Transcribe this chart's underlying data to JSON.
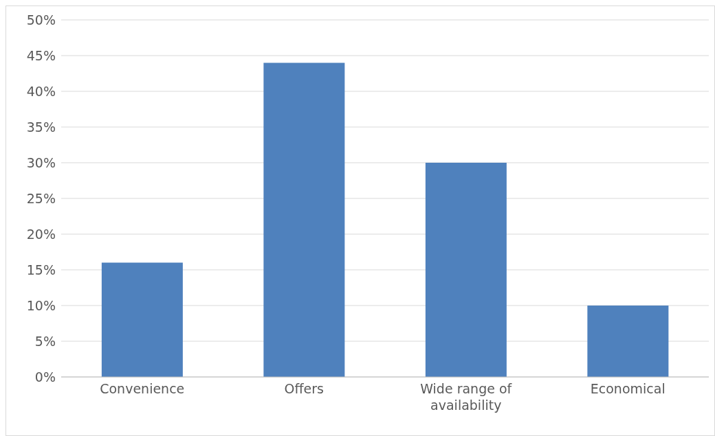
{
  "chart_data": {
    "type": "bar",
    "categories": [
      "Convenience",
      "Offers",
      "Wide range of availability",
      "Economical"
    ],
    "values": [
      16,
      44,
      30,
      10
    ],
    "color": "#4f81bd",
    "ylim": [
      0,
      50
    ],
    "yticks": [
      {
        "value": 0,
        "label": "0%"
      },
      {
        "value": 5,
        "label": "5%"
      },
      {
        "value": 10,
        "label": "10%"
      },
      {
        "value": 15,
        "label": "15%"
      },
      {
        "value": 20,
        "label": "20%"
      },
      {
        "value": 25,
        "label": "25%"
      },
      {
        "value": 30,
        "label": "30%"
      },
      {
        "value": 35,
        "label": "35%"
      },
      {
        "value": 40,
        "label": "40%"
      },
      {
        "value": 45,
        "label": "45%"
      },
      {
        "value": 50,
        "label": "50%"
      }
    ],
    "grid": "y",
    "legend": false
  }
}
